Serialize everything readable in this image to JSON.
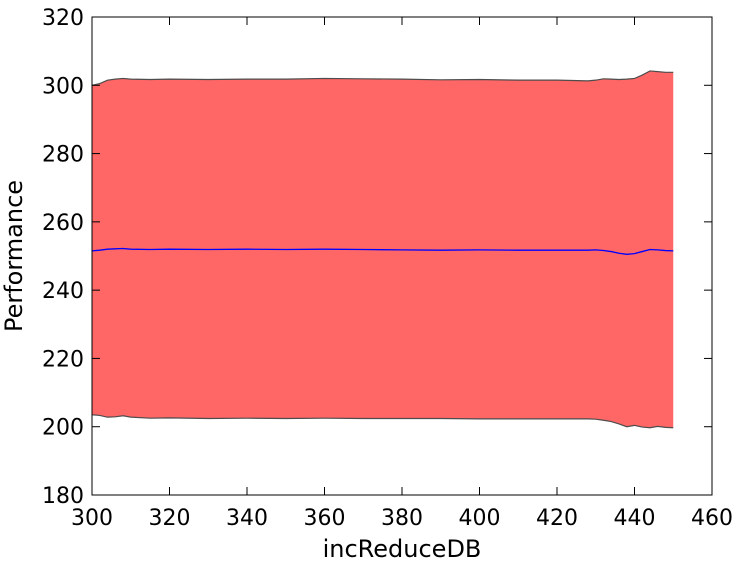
{
  "chart_data": {
    "type": "area",
    "title": "",
    "xlabel": "incReduceDB",
    "ylabel": "Performance",
    "xlim": [
      300,
      460
    ],
    "ylim": [
      180,
      320
    ],
    "xticks": [
      300,
      320,
      340,
      360,
      380,
      400,
      420,
      440,
      460
    ],
    "yticks": [
      180,
      200,
      220,
      240,
      260,
      280,
      300,
      320
    ],
    "grid": false,
    "legend": "none",
    "x": [
      300,
      302,
      304,
      306,
      308,
      310,
      315,
      320,
      330,
      340,
      350,
      360,
      370,
      380,
      390,
      400,
      410,
      420,
      428,
      430,
      432,
      434,
      436,
      438,
      440,
      442,
      444,
      446,
      448,
      450
    ],
    "series": [
      {
        "role": "mean",
        "color": "#0000ff",
        "values": [
          251.5,
          251.7,
          252.0,
          252.1,
          252.2,
          252.0,
          251.9,
          252.0,
          251.9,
          252.0,
          251.9,
          252.0,
          251.9,
          251.8,
          251.7,
          251.8,
          251.7,
          251.7,
          251.7,
          251.8,
          251.6,
          251.3,
          250.8,
          250.5,
          250.7,
          251.3,
          251.9,
          251.8,
          251.6,
          251.5
        ],
        "upper": [
          300.0,
          300.5,
          301.5,
          301.8,
          302.0,
          301.8,
          301.7,
          301.8,
          301.7,
          301.8,
          301.8,
          302.0,
          301.9,
          301.8,
          301.6,
          301.7,
          301.5,
          301.5,
          301.3,
          301.5,
          301.9,
          301.8,
          301.7,
          301.8,
          302.0,
          303.0,
          304.2,
          304.0,
          303.8,
          303.8
        ],
        "lower": [
          203.5,
          203.3,
          202.8,
          202.9,
          203.2,
          202.8,
          202.5,
          202.6,
          202.4,
          202.5,
          202.4,
          202.5,
          202.4,
          202.4,
          202.4,
          202.3,
          202.3,
          202.3,
          202.3,
          202.2,
          201.9,
          201.5,
          200.8,
          200.0,
          200.4,
          199.9,
          199.7,
          200.1,
          199.8,
          199.7
        ]
      }
    ],
    "colors": {
      "band_fill": "#ff6666",
      "band_edge": "#4d4d4d",
      "mean_line": "#0000ff",
      "axes": "#000000"
    }
  }
}
